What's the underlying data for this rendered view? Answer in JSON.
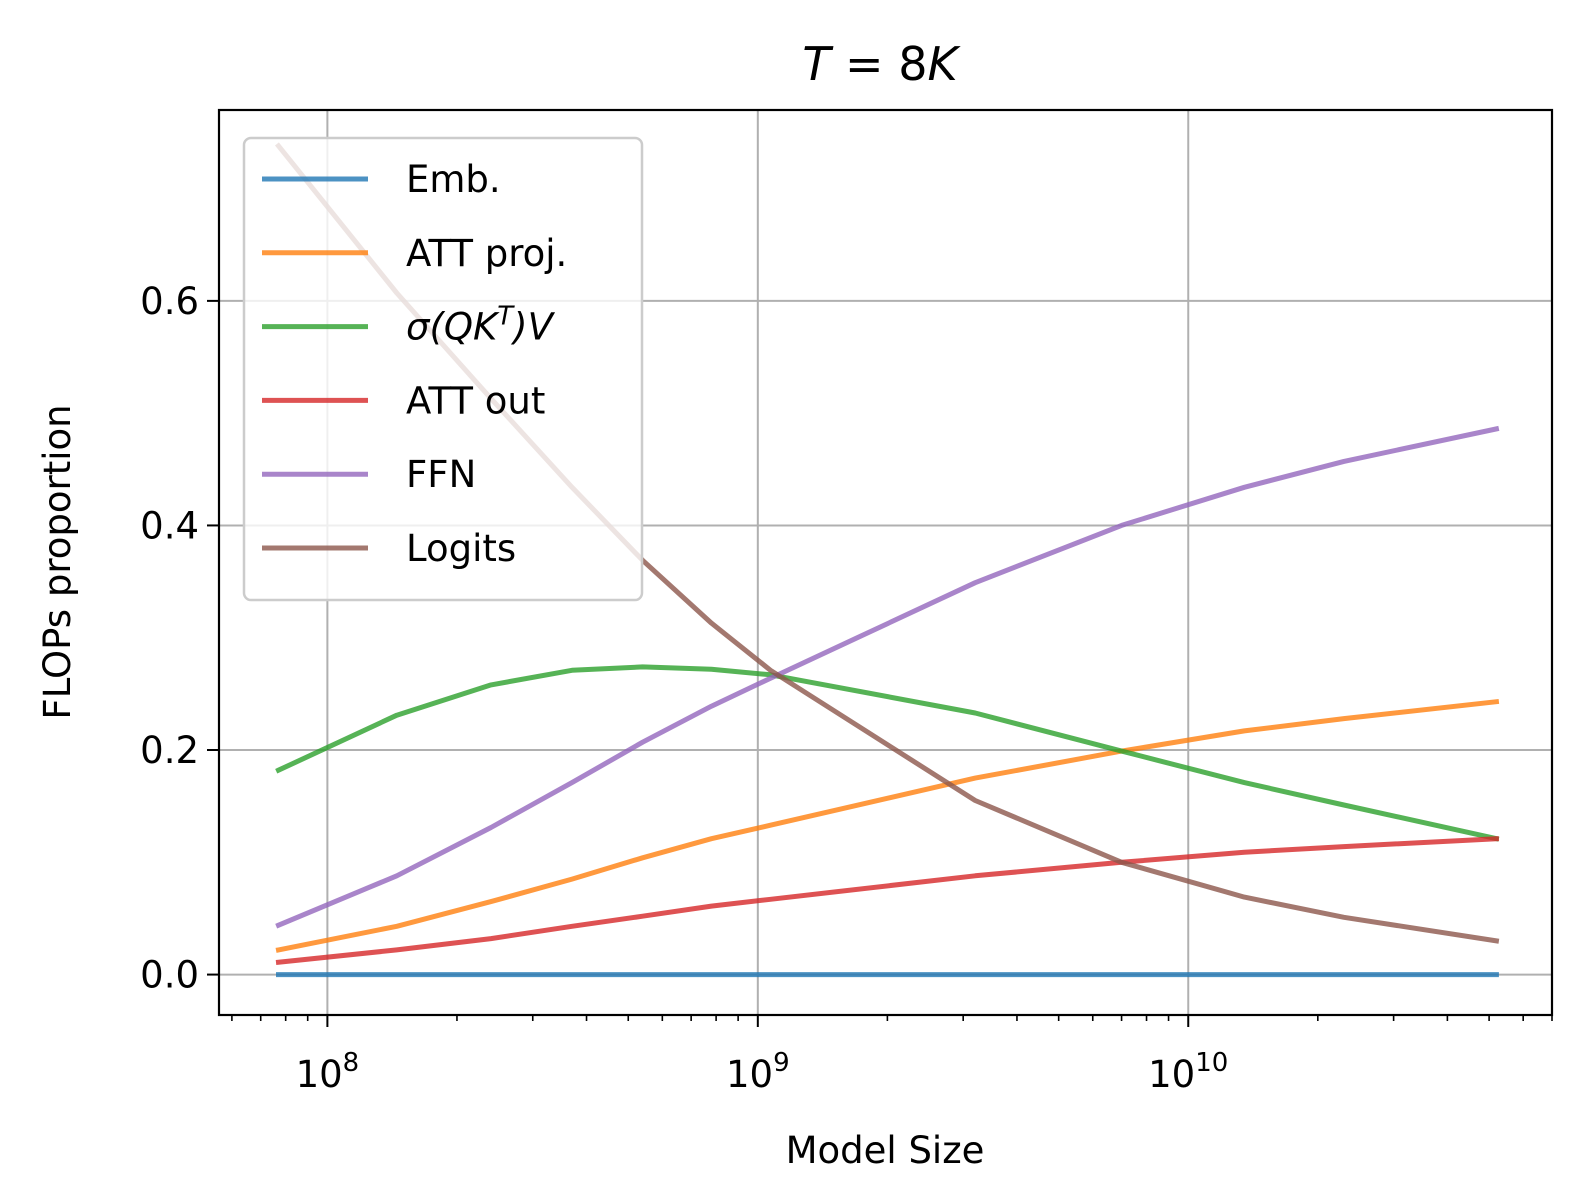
{
  "chart_data": {
    "type": "line",
    "title": "T = 8K",
    "title_parts": {
      "t": "T",
      "eq": " = ",
      "n": "8",
      "k": "K"
    },
    "xlabel": "Model Size",
    "ylabel": "FLOPs proportion",
    "xscale": "log",
    "xlim": [
      56000000,
      70000000000
    ],
    "ylim": [
      -0.036,
      0.77
    ],
    "x_ticks": [
      {
        "value": 100000000,
        "base": "10",
        "exp": "8"
      },
      {
        "value": 1000000000,
        "base": "10",
        "exp": "9"
      },
      {
        "value": 10000000000,
        "base": "10",
        "exp": "10"
      }
    ],
    "y_ticks": [
      {
        "value": 0.0,
        "label": "0.0"
      },
      {
        "value": 0.2,
        "label": "0.2"
      },
      {
        "value": 0.4,
        "label": "0.4"
      },
      {
        "value": 0.6,
        "label": "0.6"
      }
    ],
    "grid": true,
    "legend_position": "top-left",
    "x": [
      77000000,
      145000000,
      240000000,
      370000000,
      540000000,
      780000000,
      1070000000,
      3200000000,
      7000000000,
      13500000000,
      23000000000,
      52000000000
    ],
    "series": [
      {
        "name": "Emb.",
        "color": "#1f77b4",
        "values": [
          0.0,
          0.0,
          0.0,
          0.0,
          0.0,
          0.0,
          0.0,
          0.0,
          0.0,
          0.0,
          0.0,
          0.0
        ]
      },
      {
        "name": "ATT proj.",
        "color": "#ff7f0e",
        "values": [
          0.022,
          0.043,
          0.065,
          0.085,
          0.104,
          0.121,
          0.133,
          0.175,
          0.199,
          0.217,
          0.228,
          0.243
        ]
      },
      {
        "name": "σ(QK^T)V",
        "color": "#2ca02c",
        "label_parts": {
          "pre": "σ(QK",
          "sup": "T",
          "post": ")V"
        },
        "values": [
          0.182,
          0.231,
          0.258,
          0.271,
          0.274,
          0.272,
          0.267,
          0.233,
          0.199,
          0.171,
          0.151,
          0.121
        ]
      },
      {
        "name": "ATT out",
        "color": "#d62728",
        "values": [
          0.011,
          0.022,
          0.032,
          0.043,
          0.052,
          0.061,
          0.067,
          0.088,
          0.1,
          0.109,
          0.114,
          0.121
        ]
      },
      {
        "name": "FFN",
        "color": "#9467bd",
        "values": [
          0.044,
          0.088,
          0.131,
          0.171,
          0.207,
          0.239,
          0.264,
          0.349,
          0.4,
          0.434,
          0.457,
          0.486
        ]
      },
      {
        "name": "Logits",
        "color": "#8c564b",
        "values": [
          0.738,
          0.607,
          0.513,
          0.434,
          0.369,
          0.313,
          0.271,
          0.155,
          0.1,
          0.069,
          0.051,
          0.03
        ]
      }
    ]
  }
}
